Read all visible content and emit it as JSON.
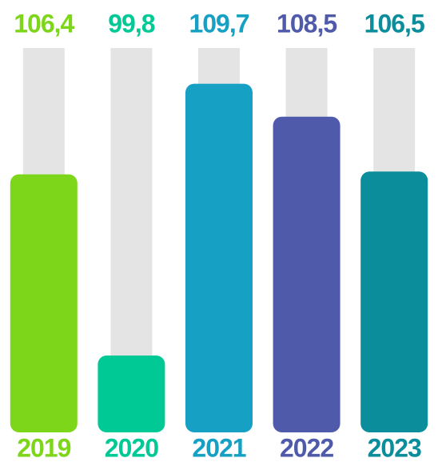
{
  "chart_data": {
    "type": "bar",
    "categories": [
      "2019",
      "2020",
      "2021",
      "2022",
      "2023"
    ],
    "values": [
      106.4,
      99.8,
      109.7,
      108.5,
      106.5
    ],
    "value_labels": [
      "106,4",
      "99,8",
      "109,7",
      "108,5",
      "106,5"
    ],
    "colors": [
      "#7ed61a",
      "#00c996",
      "#16a0c4",
      "#4f5aab",
      "#0b8d9b"
    ],
    "ylim": [
      97,
      111
    ]
  }
}
